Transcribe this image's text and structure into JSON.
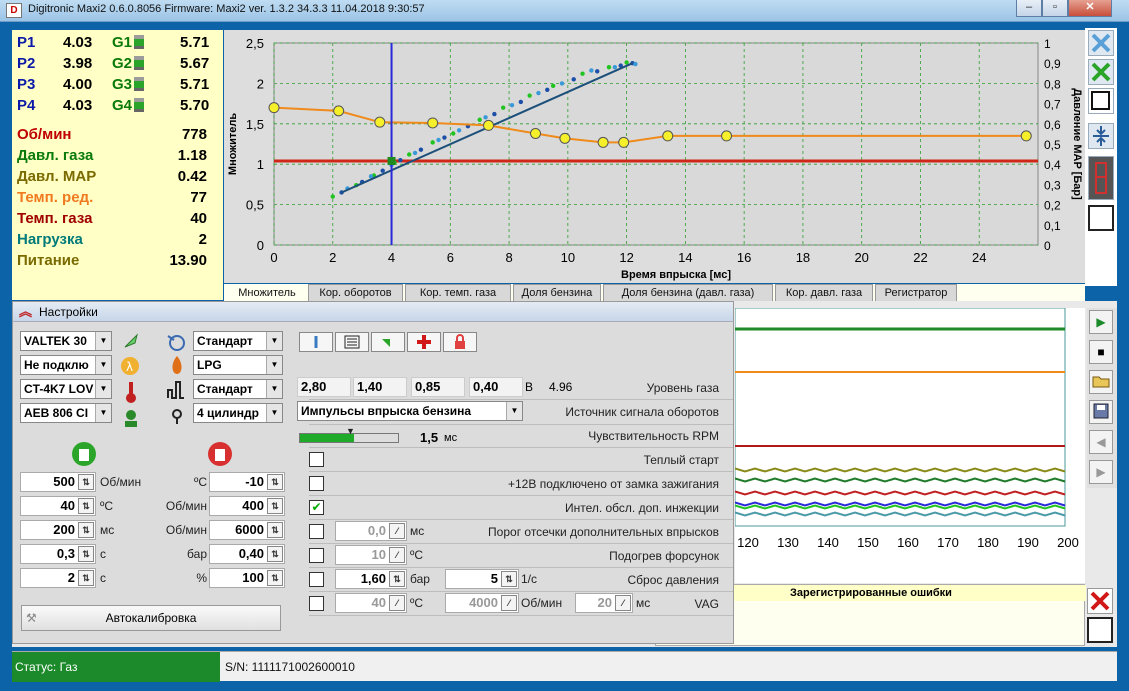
{
  "window": {
    "title": "Digitronic Maxi2 0.6.0.8056 Firmware: Maxi2  ver. 1.3.2  34.3.3    11.04.2018 9:30:57"
  },
  "readout": {
    "pressures": [
      {
        "label": "P1",
        "value": "4.03",
        "glabel": "G1",
        "gvalue": "5.71"
      },
      {
        "label": "P2",
        "value": "3.98",
        "glabel": "G2",
        "gvalue": "5.67"
      },
      {
        "label": "P3",
        "value": "4.00",
        "glabel": "G3",
        "gvalue": "5.71"
      },
      {
        "label": "P4",
        "value": "4.03",
        "glabel": "G4",
        "gvalue": "5.70"
      }
    ],
    "params": [
      {
        "label": "Об/мин",
        "value": "778",
        "color": "#c00000"
      },
      {
        "label": "Давл. газа",
        "value": "1.18",
        "color": "#0a7a0a"
      },
      {
        "label": "Давл. MAP",
        "value": "0.42",
        "color": "#7a6a00"
      },
      {
        "label": "Темп. ред.",
        "value": "77",
        "color": "#f07a20"
      },
      {
        "label": "Темп. газа",
        "value": "40",
        "color": "#a00000"
      },
      {
        "label": "Нагрузка",
        "value": "2",
        "color": "#007a7a"
      },
      {
        "label": "Питание",
        "value": "13.90",
        "color": "#7a6a00"
      }
    ]
  },
  "chart_data": {
    "type": "scatter",
    "xlabel": "Время впрыска [мс]",
    "ylabel": "Множитель",
    "y2label": "Давление MAP [Бар]",
    "xlim": [
      0,
      26
    ],
    "ylim": [
      0,
      2.5
    ],
    "y2lim": [
      0,
      1
    ],
    "xticks": [
      "0",
      "2",
      "4",
      "6",
      "8",
      "10",
      "12",
      "14",
      "16",
      "18",
      "20",
      "22",
      "24"
    ],
    "yticks": [
      "0",
      "0,5",
      "1",
      "1,5",
      "2",
      "2,5"
    ],
    "y2ticks": [
      "0",
      "0,1",
      "0,2",
      "0,3",
      "0,4",
      "0,5",
      "0,6",
      "0,7",
      "0,8",
      "0,9",
      "1"
    ],
    "grid": true,
    "cursor_x": 4.0,
    "reference_y": 1.04,
    "multiplier_curve": {
      "x": [
        0,
        2.2,
        3.6,
        5.4,
        7.3,
        8.9,
        9.9,
        11.2,
        11.9,
        13.4,
        15.4,
        25.6
      ],
      "y": [
        1.7,
        1.66,
        1.52,
        1.51,
        1.48,
        1.38,
        1.32,
        1.27,
        1.27,
        1.35,
        1.35,
        1.35
      ],
      "color": "#f08a1a"
    },
    "series": [
      {
        "name": "",
        "color": "#1c4fa8",
        "x": [
          2.3,
          3.0,
          3.7,
          4.3,
          5.0,
          5.8,
          6.6,
          7.5,
          8.4,
          9.3,
          10.2,
          11.0,
          11.8,
          12.2
        ],
        "y": [
          0.65,
          0.78,
          0.92,
          1.05,
          1.18,
          1.33,
          1.47,
          1.62,
          1.77,
          1.92,
          2.05,
          2.15,
          2.22,
          2.25
        ]
      },
      {
        "name": "",
        "color": "#21c321",
        "x": [
          2.0,
          2.8,
          3.4,
          4.1,
          4.6,
          5.4,
          6.1,
          7.0,
          7.8,
          8.7,
          9.5,
          10.5,
          11.4,
          12.0
        ],
        "y": [
          0.6,
          0.74,
          0.86,
          1.02,
          1.12,
          1.27,
          1.38,
          1.55,
          1.7,
          1.85,
          1.97,
          2.12,
          2.2,
          2.26
        ]
      },
      {
        "name": "",
        "color": "#3a9ad8",
        "x": [
          2.5,
          3.3,
          4.0,
          4.8,
          5.6,
          6.3,
          7.2,
          8.1,
          9.0,
          9.8,
          10.8,
          11.6,
          12.3
        ],
        "y": [
          0.7,
          0.85,
          0.99,
          1.14,
          1.3,
          1.42,
          1.58,
          1.73,
          1.88,
          2.0,
          2.16,
          2.2,
          2.24
        ]
      }
    ]
  },
  "tabs": [
    "Множитель",
    "Кор. оборотов",
    "Кор. темп. газа",
    "Доля бензина",
    "Доля бензина (давл. газа)",
    "Кор. давл. газа",
    "Регистратор"
  ],
  "settings": {
    "title": "Настройки",
    "left_selects": [
      "VALTEK 30",
      "Не подклю",
      "CT-4K7 LOV",
      "AEB 806 CI"
    ],
    "right_selects": [
      "Стандарт",
      "LPG",
      "Стандарт",
      "4 цилиндр"
    ],
    "switch_rows": [
      {
        "lvalue": "500",
        "lunit": "Об/мин",
        "runit_pre": "ºC",
        "rvalue": "-10"
      },
      {
        "lvalue": "40",
        "lunit": "ºC",
        "runit_pre": "Об/мин",
        "rvalue": "400"
      },
      {
        "lvalue": "200",
        "lunit": "мс",
        "runit_pre": "Об/мин",
        "rvalue": "6000"
      },
      {
        "lvalue": "0,3",
        "lunit": "с",
        "runit_pre": "бар",
        "rvalue": "0,40"
      },
      {
        "lvalue": "2",
        "lunit": "с",
        "runit_pre": "%",
        "rvalue": "100"
      }
    ],
    "autocal_label": "Автокалибровка",
    "gas_level": {
      "values": [
        "2,80",
        "1,40",
        "0,85",
        "0,40"
      ],
      "unit": "В",
      "reading": "4.96",
      "label": "Уровень газа"
    },
    "rpm_source": {
      "value": "Импульсы впрыска бензина",
      "label": "Источник сигнала оборотов"
    },
    "rpm_sensitivity": {
      "value": "1,5",
      "unit": "мс",
      "label": "Чувствительность RPM",
      "level": 0.55
    },
    "rows": [
      {
        "label": "Теплый старт",
        "checked": false
      },
      {
        "label": "+12В подключено от замка зажигания",
        "checked": false
      },
      {
        "label": "Интел. обсл. доп. инжекции",
        "checked": true
      },
      {
        "label": "Порог отсечки дополнительных впрысков",
        "checked": false,
        "value": "0,0",
        "unit": "мс"
      },
      {
        "label": "Подогрев форсунок",
        "checked": false,
        "value": "10",
        "unit": "ºC"
      },
      {
        "label": "Сброс давления",
        "checked": false,
        "value": "1,60",
        "unit": "бар",
        "value2": "5",
        "unit2": "1/с"
      },
      {
        "label": "VAG",
        "checked": false,
        "value": "40",
        "unit": "ºC",
        "value2": "4000",
        "unit2": "Об/мин",
        "value3": "20",
        "unit3": "мс"
      }
    ]
  },
  "scope": {
    "xticks": [
      "120",
      "130",
      "140",
      "150",
      "160",
      "170",
      "180",
      "190",
      "200"
    ]
  },
  "errors": {
    "title": "Зарегистрированные ошибки"
  },
  "status": {
    "text": "Статус: Газ",
    "serial": "S/N: 1111171002600010"
  }
}
